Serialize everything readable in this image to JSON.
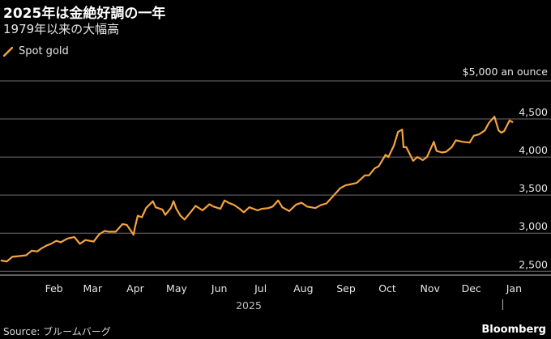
{
  "header": {
    "title": "2025年は金絶好調の一年",
    "subtitle": "1979年以来の大幅高"
  },
  "footer": {
    "source": "Source: ブルームバーグ",
    "brand": "Bloomberg"
  },
  "colors": {
    "line": "#f4a340",
    "grid": "#6e6e6e",
    "background": "#000000"
  },
  "chart_data": {
    "type": "line",
    "title": "2025年は金絶好調の一年",
    "subtitle": "1979年以来の大幅高",
    "unit_label": "$5,000 an ounce",
    "year_label": "2025",
    "legend": {
      "placement": "top-left"
    },
    "grid": true,
    "xlim": [
      "2025-01-01",
      "2026-01-09"
    ],
    "ylim": [
      2450,
      5000
    ],
    "y_ticks": [
      {
        "value": 2500,
        "label": "2,500"
      },
      {
        "value": 3000,
        "label": "3,000"
      },
      {
        "value": 3500,
        "label": "3,500"
      },
      {
        "value": 4000,
        "label": "4,000"
      },
      {
        "value": 4500,
        "label": "4,500"
      }
    ],
    "x_ticks": [
      {
        "date": "2025-02-01",
        "label": "Feb"
      },
      {
        "date": "2025-03-01",
        "label": "Mar"
      },
      {
        "date": "2025-04-01",
        "label": "Apr"
      },
      {
        "date": "2025-05-01",
        "label": "May"
      },
      {
        "date": "2025-06-01",
        "label": "Jun"
      },
      {
        "date": "2025-07-01",
        "label": "Jul"
      },
      {
        "date": "2025-08-01",
        "label": "Aug"
      },
      {
        "date": "2025-09-01",
        "label": "Sep"
      },
      {
        "date": "2025-10-01",
        "label": "Oct"
      },
      {
        "date": "2025-11-01",
        "label": "Nov"
      },
      {
        "date": "2025-12-01",
        "label": "Dec"
      },
      {
        "date": "2026-01-01",
        "label": "Jan"
      }
    ],
    "series": [
      {
        "name": "Spot gold",
        "points": [
          [
            "2025-01-02",
            2640
          ],
          [
            "2025-01-06",
            2630
          ],
          [
            "2025-01-10",
            2690
          ],
          [
            "2025-01-15",
            2700
          ],
          [
            "2025-01-20",
            2710
          ],
          [
            "2025-01-24",
            2770
          ],
          [
            "2025-01-28",
            2760
          ],
          [
            "2025-01-31",
            2800
          ],
          [
            "2025-02-04",
            2840
          ],
          [
            "2025-02-07",
            2860
          ],
          [
            "2025-02-11",
            2900
          ],
          [
            "2025-02-14",
            2880
          ],
          [
            "2025-02-19",
            2930
          ],
          [
            "2025-02-24",
            2950
          ],
          [
            "2025-02-28",
            2860
          ],
          [
            "2025-03-04",
            2910
          ],
          [
            "2025-03-10",
            2890
          ],
          [
            "2025-03-14",
            2985
          ],
          [
            "2025-03-18",
            3030
          ],
          [
            "2025-03-21",
            3020
          ],
          [
            "2025-03-26",
            3020
          ],
          [
            "2025-03-31",
            3120
          ],
          [
            "2025-04-03",
            3110
          ],
          [
            "2025-04-08",
            2980
          ],
          [
            "2025-04-09",
            3080
          ],
          [
            "2025-04-11",
            3230
          ],
          [
            "2025-04-14",
            3210
          ],
          [
            "2025-04-17",
            3330
          ],
          [
            "2025-04-22",
            3420
          ],
          [
            "2025-04-24",
            3340
          ],
          [
            "2025-04-29",
            3310
          ],
          [
            "2025-05-01",
            3240
          ],
          [
            "2025-05-05",
            3330
          ],
          [
            "2025-05-07",
            3420
          ],
          [
            "2025-05-09",
            3320
          ],
          [
            "2025-05-12",
            3230
          ],
          [
            "2025-05-15",
            3180
          ],
          [
            "2025-05-20",
            3290
          ],
          [
            "2025-05-23",
            3360
          ],
          [
            "2025-05-28",
            3300
          ],
          [
            "2025-06-02",
            3380
          ],
          [
            "2025-06-05",
            3350
          ],
          [
            "2025-06-10",
            3320
          ],
          [
            "2025-06-13",
            3430
          ],
          [
            "2025-06-16",
            3400
          ],
          [
            "2025-06-20",
            3370
          ],
          [
            "2025-06-24",
            3320
          ],
          [
            "2025-06-27",
            3275
          ],
          [
            "2025-07-01",
            3340
          ],
          [
            "2025-07-07",
            3300
          ],
          [
            "2025-07-10",
            3320
          ],
          [
            "2025-07-15",
            3330
          ],
          [
            "2025-07-18",
            3350
          ],
          [
            "2025-07-22",
            3430
          ],
          [
            "2025-07-25",
            3340
          ],
          [
            "2025-07-30",
            3290
          ],
          [
            "2025-08-04",
            3375
          ],
          [
            "2025-08-08",
            3400
          ],
          [
            "2025-08-12",
            3350
          ],
          [
            "2025-08-18",
            3330
          ],
          [
            "2025-08-22",
            3370
          ],
          [
            "2025-08-26",
            3390
          ],
          [
            "2025-08-29",
            3450
          ],
          [
            "2025-09-02",
            3530
          ],
          [
            "2025-09-05",
            3590
          ],
          [
            "2025-09-09",
            3630
          ],
          [
            "2025-09-12",
            3640
          ],
          [
            "2025-09-17",
            3660
          ],
          [
            "2025-09-23",
            3760
          ],
          [
            "2025-09-26",
            3760
          ],
          [
            "2025-09-30",
            3850
          ],
          [
            "2025-10-03",
            3880
          ],
          [
            "2025-10-08",
            4030
          ],
          [
            "2025-10-10",
            4000
          ],
          [
            "2025-10-14",
            4150
          ],
          [
            "2025-10-17",
            4330
          ],
          [
            "2025-10-20",
            4360
          ],
          [
            "2025-10-21",
            4130
          ],
          [
            "2025-10-23",
            4130
          ],
          [
            "2025-10-28",
            3950
          ],
          [
            "2025-10-31",
            4000
          ],
          [
            "2025-11-04",
            3960
          ],
          [
            "2025-11-07",
            4000
          ],
          [
            "2025-11-12",
            4200
          ],
          [
            "2025-11-14",
            4080
          ],
          [
            "2025-11-18",
            4060
          ],
          [
            "2025-11-21",
            4070
          ],
          [
            "2025-11-25",
            4130
          ],
          [
            "2025-11-28",
            4220
          ],
          [
            "2025-12-03",
            4200
          ],
          [
            "2025-12-08",
            4190
          ],
          [
            "2025-12-11",
            4280
          ],
          [
            "2025-12-15",
            4300
          ],
          [
            "2025-12-19",
            4350
          ],
          [
            "2025-12-22",
            4450
          ],
          [
            "2025-12-26",
            4530
          ],
          [
            "2025-12-29",
            4350
          ],
          [
            "2025-12-31",
            4320
          ],
          [
            "2026-01-02",
            4340
          ],
          [
            "2026-01-06",
            4480
          ],
          [
            "2026-01-08",
            4460
          ]
        ]
      }
    ]
  }
}
